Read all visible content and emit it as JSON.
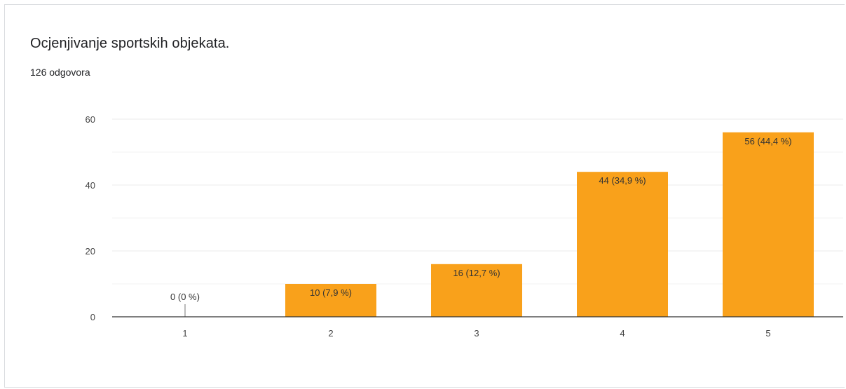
{
  "card": {
    "title": "Ocjenjivanje sportskih objekata.",
    "subtitle": "126 odgovora"
  },
  "colors": {
    "bar": "#f9a11b",
    "grid": "#ebebeb",
    "axis": "#333333"
  },
  "chart_data": {
    "type": "bar",
    "categories": [
      "1",
      "2",
      "3",
      "4",
      "5"
    ],
    "values": [
      0,
      10,
      16,
      44,
      56
    ],
    "data_labels": [
      "0 (0 %)",
      "10 (7,9 %)",
      "16 (12,7 %)",
      "44 (34,9 %)",
      "56 (44,4 %)"
    ],
    "y_ticks": [
      0,
      20,
      40,
      60
    ],
    "ylim": [
      0,
      60
    ],
    "grid": true,
    "legend": "none"
  }
}
